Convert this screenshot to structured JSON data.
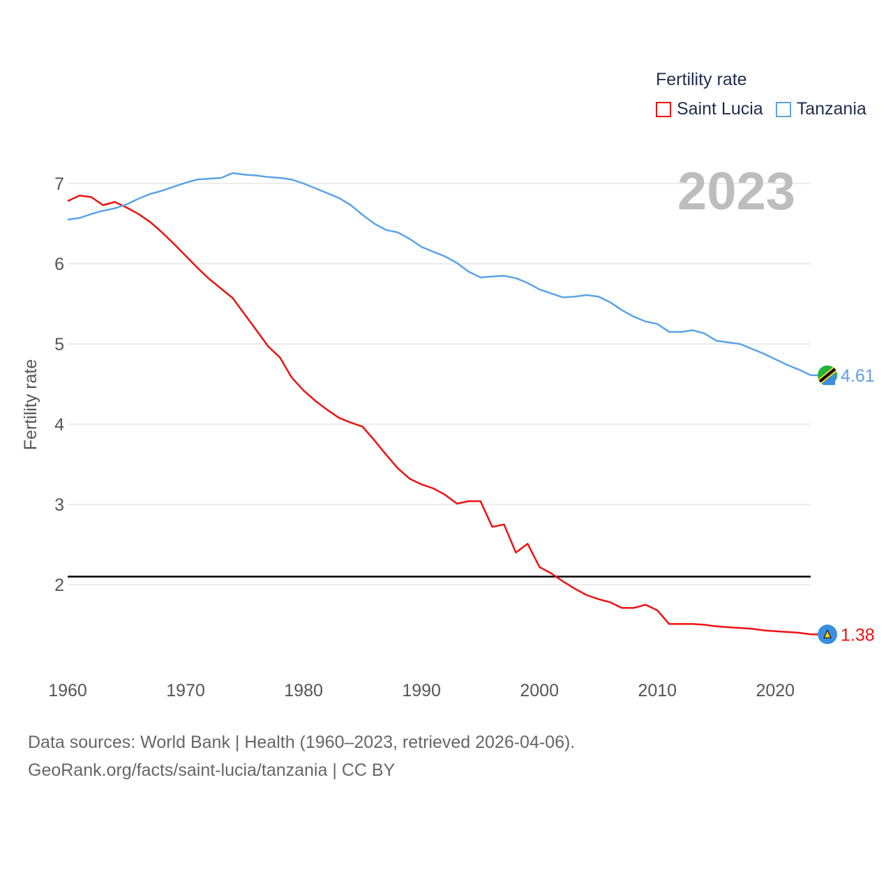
{
  "legend": {
    "title": "Fertility rate",
    "items": [
      {
        "label": "Saint Lucia",
        "color": "#ee1111"
      },
      {
        "label": "Tanzania",
        "color": "#5ba3e6"
      }
    ]
  },
  "source": {
    "line1": "Data sources: World Bank | Health (1960–2023, retrieved 2026-04-06).",
    "line2": "GeoRank.org/facts/saint-lucia/tanzania | CC BY"
  },
  "chart_data": {
    "type": "line",
    "title": "Fertility rate",
    "year_label": "2023",
    "xlabel": "",
    "ylabel": "Fertility rate",
    "xlim": [
      1960,
      2023
    ],
    "ylim": [
      1,
      7.5
    ],
    "x_ticks": [
      "1960",
      "1970",
      "1980",
      "1990",
      "2000",
      "2010",
      "2020"
    ],
    "y_ticks": [
      "2",
      "3",
      "4",
      "5",
      "6",
      "7"
    ],
    "reference_line": 2.1,
    "grid": true,
    "legend_position": "top-right",
    "x": [
      1960,
      1961,
      1962,
      1963,
      1964,
      1965,
      1966,
      1967,
      1968,
      1969,
      1970,
      1971,
      1972,
      1973,
      1974,
      1975,
      1976,
      1977,
      1978,
      1979,
      1980,
      1981,
      1982,
      1983,
      1984,
      1985,
      1986,
      1987,
      1988,
      1989,
      1990,
      1991,
      1992,
      1993,
      1994,
      1995,
      1996,
      1997,
      1998,
      1999,
      2000,
      2001,
      2002,
      2003,
      2004,
      2005,
      2006,
      2007,
      2008,
      2009,
      2010,
      2011,
      2012,
      2013,
      2014,
      2015,
      2016,
      2017,
      2018,
      2019,
      2020,
      2021,
      2022,
      2023
    ],
    "series": [
      {
        "name": "Saint Lucia",
        "color": "#ee1111",
        "end_label": "1.38",
        "values": [
          6.78,
          6.85,
          6.83,
          6.73,
          6.77,
          6.7,
          6.62,
          6.52,
          6.39,
          6.25,
          6.1,
          5.95,
          5.81,
          5.69,
          5.57,
          5.37,
          5.17,
          4.97,
          4.83,
          4.58,
          4.42,
          4.29,
          4.18,
          4.08,
          4.02,
          3.97,
          3.8,
          3.62,
          3.45,
          3.32,
          3.25,
          3.2,
          3.12,
          3.01,
          3.04,
          3.04,
          2.72,
          2.75,
          2.4,
          2.51,
          2.22,
          2.14,
          2.04,
          1.95,
          1.87,
          1.82,
          1.78,
          1.71,
          1.71,
          1.75,
          1.68,
          1.51,
          1.51,
          1.51,
          1.5,
          1.48,
          1.47,
          1.46,
          1.45,
          1.43,
          1.42,
          1.41,
          1.4,
          1.38
        ]
      },
      {
        "name": "Tanzania",
        "color": "#5ba3e6",
        "end_label": "4.61",
        "values": [
          6.55,
          6.57,
          6.62,
          6.66,
          6.69,
          6.74,
          6.81,
          6.87,
          6.91,
          6.96,
          7.01,
          7.05,
          7.06,
          7.07,
          7.13,
          7.11,
          7.1,
          7.08,
          7.07,
          7.05,
          7.0,
          6.94,
          6.88,
          6.82,
          6.73,
          6.61,
          6.5,
          6.42,
          6.39,
          6.31,
          6.21,
          6.15,
          6.09,
          6.01,
          5.9,
          5.83,
          5.84,
          5.85,
          5.82,
          5.76,
          5.68,
          5.63,
          5.58,
          5.59,
          5.61,
          5.59,
          5.52,
          5.42,
          5.34,
          5.28,
          5.25,
          5.15,
          5.15,
          5.17,
          5.13,
          5.04,
          5.02,
          5.0,
          4.94,
          4.88,
          4.81,
          4.74,
          4.68,
          4.61
        ]
      }
    ]
  }
}
